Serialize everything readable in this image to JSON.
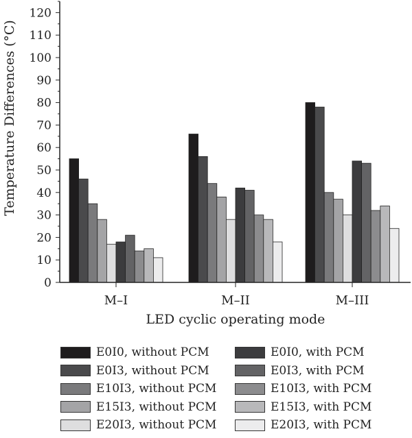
{
  "chart_data": {
    "type": "bar",
    "title": "",
    "xlabel": "LED cyclic operating mode",
    "ylabel": "Temperature Differences (°C)",
    "ylim": [
      0,
      125
    ],
    "yticks": [
      0,
      10,
      20,
      30,
      40,
      50,
      60,
      70,
      80,
      90,
      100,
      110,
      120
    ],
    "categories": [
      "M–I",
      "M–II",
      "M–III"
    ],
    "grid": false,
    "legend_position": "bottom",
    "series": [
      {
        "name": "E0I0, without PCM",
        "color": "#1e1c1d",
        "values": [
          55,
          66,
          80
        ]
      },
      {
        "name": "E0I3, without PCM",
        "color": "#4a4a4c",
        "values": [
          46,
          56,
          78
        ]
      },
      {
        "name": "E10I3, without PCM",
        "color": "#7a7a7c",
        "values": [
          35,
          44,
          40
        ]
      },
      {
        "name": "E15I3, without PCM",
        "color": "#a4a4a6",
        "values": [
          28,
          38,
          37
        ]
      },
      {
        "name": "E20I3, without PCM",
        "color": "#dededf",
        "values": [
          17,
          28,
          30
        ]
      },
      {
        "name": "E0I0, with PCM",
        "color": "#3c3c3e",
        "values": [
          18,
          42,
          54
        ]
      },
      {
        "name": "E0I3, with PCM",
        "color": "#636365",
        "values": [
          21,
          41,
          53
        ]
      },
      {
        "name": "E10I3, with PCM",
        "color": "#8c8c8e",
        "values": [
          14,
          30,
          32
        ]
      },
      {
        "name": "E15I3, with PCM",
        "color": "#b8b8ba",
        "values": [
          15,
          28,
          34
        ]
      },
      {
        "name": "E20I3, with PCM",
        "color": "#ececed",
        "values": [
          11,
          18,
          24
        ]
      }
    ]
  }
}
